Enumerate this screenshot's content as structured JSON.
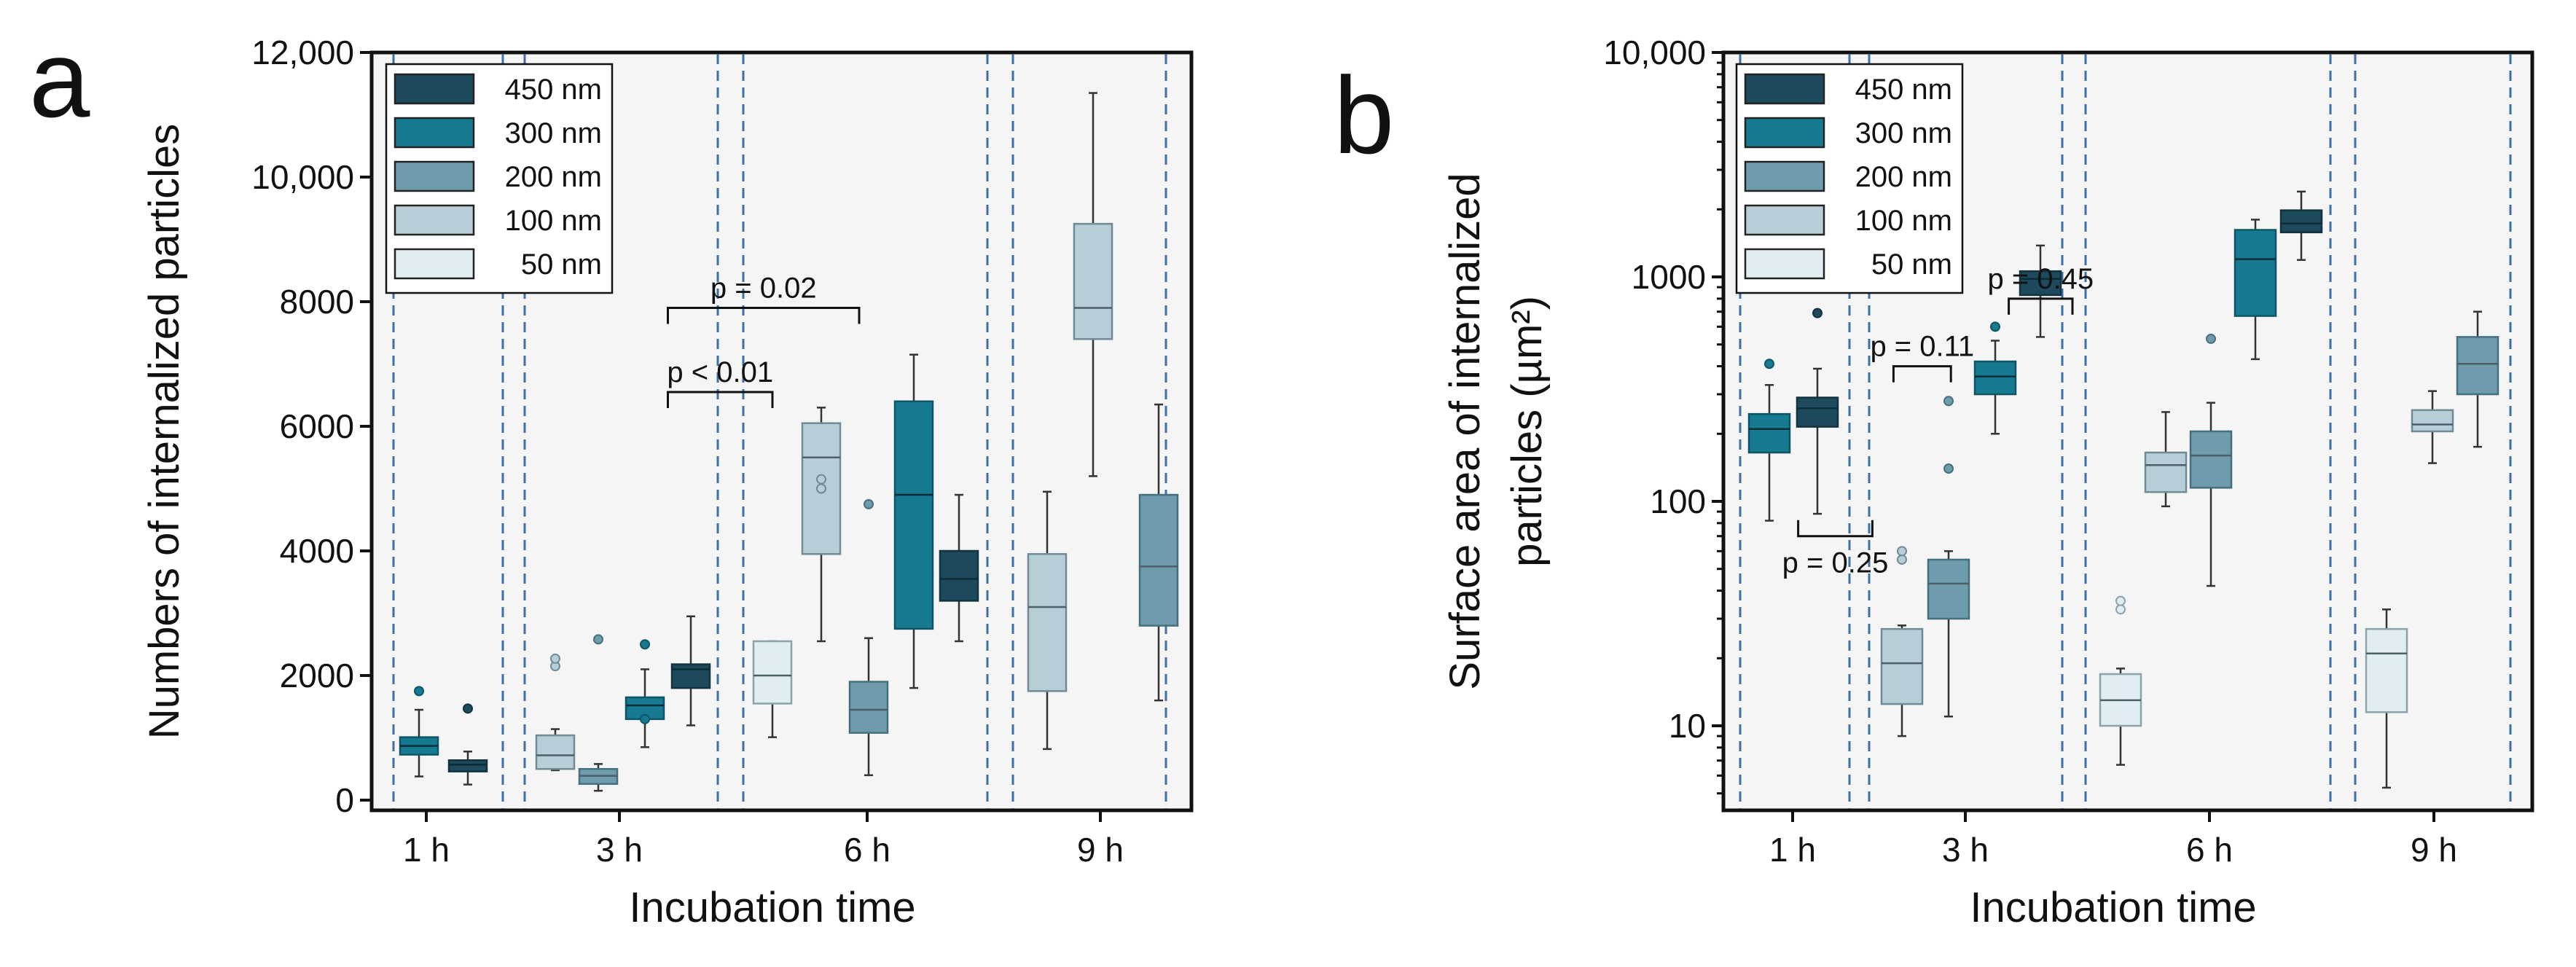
{
  "chart_data": [
    {
      "type": "box",
      "panel_label": "a",
      "xlabel": "Incubation time",
      "ylabel": "Numbers of internalized particles",
      "yscale": "linear",
      "ylim": [
        0,
        12000
      ],
      "yticks": [
        0,
        2000,
        4000,
        6000,
        8000,
        10000,
        12000
      ],
      "ytick_labels": [
        "0",
        "2000",
        "4000",
        "6000",
        "8000",
        "10,000",
        "12,000"
      ],
      "categories": [
        "1 h",
        "3 h",
        "6 h",
        "9 h"
      ],
      "legend": [
        {
          "label": "450 nm",
          "color": "#1d4b5d"
        },
        {
          "label": "300 nm",
          "color": "#167a91"
        },
        {
          "label": "200 nm",
          "color": "#6f9cad"
        },
        {
          "label": "100 nm",
          "color": "#b8ced7"
        },
        {
          "label": "50 nm",
          "color": "#e0eef2"
        }
      ],
      "boxes": [
        {
          "group": "1 h",
          "size": "300 nm",
          "min": 380,
          "q1": 730,
          "median": 870,
          "q3": 1010,
          "max": 1450,
          "outliers": [
            1750
          ]
        },
        {
          "group": "1 h",
          "size": "450 nm",
          "min": 250,
          "q1": 460,
          "median": 570,
          "q3": 640,
          "max": 780,
          "outliers": [
            1470
          ]
        },
        {
          "group": "3 h",
          "size": "100 nm",
          "min": 480,
          "q1": 500,
          "median": 720,
          "q3": 1040,
          "max": 1140,
          "outliers": [
            2150,
            2270
          ]
        },
        {
          "group": "3 h",
          "size": "200 nm",
          "min": 150,
          "q1": 260,
          "median": 390,
          "q3": 500,
          "max": 580,
          "outliers": [
            2580
          ]
        },
        {
          "group": "3 h",
          "size": "300 nm",
          "min": 850,
          "q1": 1300,
          "median": 1520,
          "q3": 1650,
          "max": 2100,
          "outliers": [
            2500,
            1300
          ]
        },
        {
          "group": "3 h",
          "size": "450 nm",
          "min": 1200,
          "q1": 1800,
          "median": 2100,
          "q3": 2180,
          "max": 2950,
          "outliers": []
        },
        {
          "group": "6 h",
          "size": "50 nm",
          "min": 1010,
          "q1": 1550,
          "median": 2000,
          "q3": 2550,
          "max": 2550,
          "outliers": []
        },
        {
          "group": "6 h",
          "size": "100 nm",
          "min": 2550,
          "q1": 3950,
          "median": 5500,
          "q3": 6050,
          "max": 6300,
          "outliers": [
            5000,
            5150
          ]
        },
        {
          "group": "6 h",
          "size": "200 nm",
          "min": 400,
          "q1": 1080,
          "median": 1450,
          "q3": 1900,
          "max": 2600,
          "outliers": [
            4750
          ]
        },
        {
          "group": "6 h",
          "size": "300 nm",
          "min": 1800,
          "q1": 2750,
          "median": 4900,
          "q3": 6400,
          "max": 7150,
          "outliers": []
        },
        {
          "group": "6 h",
          "size": "450 nm",
          "min": 2550,
          "q1": 3200,
          "median": 3550,
          "q3": 4000,
          "max": 4900,
          "outliers": []
        },
        {
          "group": "9 h",
          "size": "100 nm",
          "min": 820,
          "q1": 1750,
          "median": 3100,
          "q3": 3950,
          "max": 4950,
          "outliers": []
        },
        {
          "group": "9 h",
          "size": "100 nm",
          "min": 5200,
          "q1": 7400,
          "median": 7900,
          "q3": 9250,
          "max": 11350,
          "outliers": []
        },
        {
          "group": "9 h",
          "size": "200 nm",
          "min": 1600,
          "q1": 2800,
          "median": 3750,
          "q3": 4900,
          "max": 6350,
          "outliers": []
        }
      ],
      "annotations": [
        {
          "label": "p < 0.01",
          "x_from": 4.5,
          "x_to": 6.0,
          "y": 6550
        },
        {
          "label": "p = 0.02",
          "x_from": 4.5,
          "x_to": 7.8,
          "y": 7900
        }
      ]
    },
    {
      "type": "box",
      "panel_label": "b",
      "xlabel": "Incubation time",
      "ylabel": "Surface area of internalized particles (µm²)",
      "ylabel_line1": "Surface area of internalized",
      "ylabel_line2": "particles (µm²)",
      "yscale": "log",
      "ylim": [
        4.5,
        10000
      ],
      "yticks": [
        10,
        100,
        1000,
        10000
      ],
      "ytick_labels": [
        "10",
        "100",
        "1000",
        "10,000"
      ],
      "categories": [
        "1 h",
        "3 h",
        "6 h",
        "9 h"
      ],
      "legend": [
        {
          "label": "450 nm",
          "color": "#1d4b5d"
        },
        {
          "label": "300 nm",
          "color": "#167a91"
        },
        {
          "label": "200 nm",
          "color": "#6f9cad"
        },
        {
          "label": "100 nm",
          "color": "#b8ced7"
        },
        {
          "label": "50 nm",
          "color": "#e0eef2"
        }
      ],
      "boxes": [
        {
          "group": "1 h",
          "size": "300 nm",
          "min": 82,
          "q1": 165,
          "median": 210,
          "q3": 245,
          "max": 330,
          "outliers": [
            410
          ]
        },
        {
          "group": "1 h",
          "size": "450 nm",
          "min": 88,
          "q1": 215,
          "median": 260,
          "q3": 290,
          "max": 390,
          "outliers": [
            690
          ]
        },
        {
          "group": "3 h",
          "size": "100 nm",
          "min": 9,
          "q1": 12.5,
          "median": 19,
          "q3": 27,
          "max": 28,
          "outliers": [
            55,
            60
          ]
        },
        {
          "group": "3 h",
          "size": "200 nm",
          "min": 11,
          "q1": 30,
          "median": 43,
          "q3": 55,
          "max": 60,
          "outliers": [
            140,
            280
          ]
        },
        {
          "group": "3 h",
          "size": "300 nm",
          "min": 200,
          "q1": 300,
          "median": 360,
          "q3": 420,
          "max": 520,
          "outliers": [
            600
          ]
        },
        {
          "group": "3 h",
          "size": "450 nm",
          "min": 540,
          "q1": 830,
          "median": 980,
          "q3": 1060,
          "max": 1380,
          "outliers": []
        },
        {
          "group": "6 h",
          "size": "50 nm",
          "min": 6.7,
          "q1": 10,
          "median": 13,
          "q3": 17,
          "max": 18,
          "outliers": [
            33,
            36
          ]
        },
        {
          "group": "6 h",
          "size": "100 nm",
          "min": 95,
          "q1": 110,
          "median": 145,
          "q3": 165,
          "max": 250,
          "outliers": []
        },
        {
          "group": "6 h",
          "size": "200 nm",
          "min": 42,
          "q1": 115,
          "median": 160,
          "q3": 205,
          "max": 275,
          "outliers": [
            530
          ]
        },
        {
          "group": "6 h",
          "size": "300 nm",
          "min": 430,
          "q1": 670,
          "median": 1200,
          "q3": 1620,
          "max": 1800,
          "outliers": []
        },
        {
          "group": "6 h",
          "size": "450 nm",
          "min": 1190,
          "q1": 1580,
          "median": 1730,
          "q3": 1980,
          "max": 2400,
          "outliers": []
        },
        {
          "group": "9 h",
          "size": "50 nm",
          "min": 5.3,
          "q1": 11.5,
          "median": 21,
          "q3": 27,
          "max": 33,
          "outliers": []
        },
        {
          "group": "9 h",
          "size": "100 nm",
          "min": 148,
          "q1": 205,
          "median": 220,
          "q3": 255,
          "max": 310,
          "outliers": []
        },
        {
          "group": "9 h",
          "size": "200 nm",
          "min": 175,
          "q1": 300,
          "median": 410,
          "q3": 540,
          "max": 700,
          "outliers": []
        }
      ],
      "annotations": [
        {
          "label": "p = 0.25",
          "x_from": 0.6,
          "x_to": 1.65,
          "y": 70,
          "below": true
        },
        {
          "label": "p = 0.11",
          "x_from": 1.9,
          "x_to": 3.05,
          "y": 400
        },
        {
          "label": "p = 0.45",
          "x_from": 4.3,
          "x_to": 5.4,
          "y": 800
        }
      ]
    }
  ]
}
